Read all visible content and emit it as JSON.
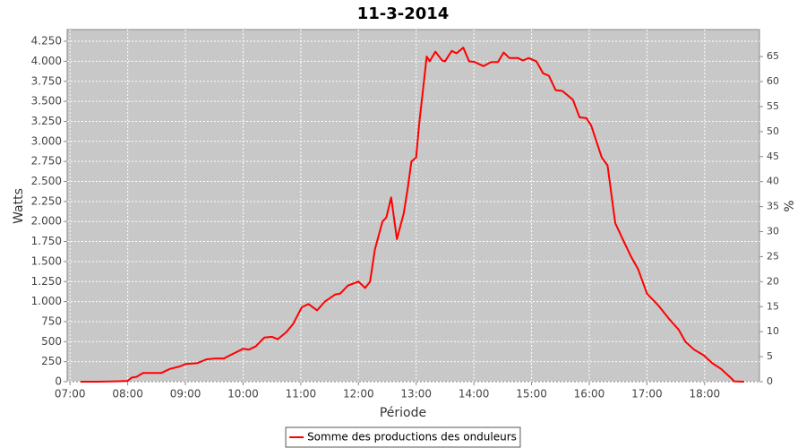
{
  "chart_data": {
    "type": "line",
    "title": "11-3-2014",
    "xlabel": "Période",
    "ylabel": "Watts",
    "y2label": "%",
    "x": [
      431,
      450,
      468,
      480,
      484,
      489,
      496,
      506,
      515,
      524,
      534,
      540,
      552,
      562,
      571,
      580,
      588,
      600,
      606,
      613,
      622,
      630,
      636,
      645,
      652,
      661,
      668,
      677,
      685,
      696,
      701,
      709,
      720,
      727,
      732,
      737,
      745,
      749,
      754,
      760,
      767,
      771,
      775,
      780,
      783,
      791,
      794,
      800,
      807,
      810,
      817,
      822,
      829,
      835,
      841,
      850,
      858,
      865,
      871,
      877,
      886,
      891,
      897,
      905,
      912,
      918,
      925,
      932,
      943,
      950,
      957,
      962,
      973,
      979,
      987,
      996,
      1004,
      1011,
      1020,
      1032,
      1044,
      1053,
      1060,
      1069,
      1079,
      1088,
      1097,
      1107,
      1111,
      1121
    ],
    "series": [
      {
        "name": "Somme des productions des onduleurs",
        "color": "#ff0000",
        "values": [
          0,
          0,
          5,
          10,
          50,
          60,
          110,
          110,
          110,
          160,
          190,
          220,
          230,
          280,
          290,
          290,
          340,
          410,
          400,
          440,
          550,
          560,
          530,
          620,
          720,
          930,
          970,
          890,
          1000,
          1090,
          1100,
          1200,
          1250,
          1170,
          1250,
          1650,
          2000,
          2050,
          2300,
          1780,
          2100,
          2400,
          2750,
          2800,
          3200,
          4060,
          4000,
          4120,
          4010,
          4000,
          4130,
          4100,
          4170,
          4000,
          3990,
          3940,
          3990,
          3990,
          4110,
          4040,
          4040,
          4010,
          4040,
          4000,
          3850,
          3820,
          3640,
          3630,
          3520,
          3300,
          3290,
          3200,
          2800,
          2700,
          1980,
          1750,
          1550,
          1400,
          1100,
          950,
          770,
          650,
          500,
          400,
          330,
          230,
          160,
          50,
          5,
          0
        ]
      }
    ],
    "xlim": [
      417,
      1137
    ],
    "xticks": [
      {
        "value": 420,
        "label": "07:00"
      },
      {
        "value": 480,
        "label": "08:00"
      },
      {
        "value": 540,
        "label": "09:00"
      },
      {
        "value": 600,
        "label": "10:00"
      },
      {
        "value": 660,
        "label": "11:00"
      },
      {
        "value": 720,
        "label": "12:00"
      },
      {
        "value": 780,
        "label": "13:00"
      },
      {
        "value": 840,
        "label": "14:00"
      },
      {
        "value": 900,
        "label": "15:00"
      },
      {
        "value": 960,
        "label": "16:00"
      },
      {
        "value": 1020,
        "label": "17:00"
      },
      {
        "value": 1080,
        "label": "18:00"
      }
    ],
    "ylim": [
      0,
      4396
    ],
    "yticks": [
      0,
      250,
      500,
      750,
      {
        "value": 1000,
        "label": "1.000"
      },
      {
        "value": 1250,
        "label": "1.250"
      },
      {
        "value": 1500,
        "label": "1.500"
      },
      {
        "value": 1750,
        "label": "1.750"
      },
      {
        "value": 2000,
        "label": "2.000"
      },
      {
        "value": 2250,
        "label": "2.250"
      },
      {
        "value": 2500,
        "label": "2.500"
      },
      {
        "value": 2750,
        "label": "2.750"
      },
      {
        "value": 3000,
        "label": "3.000"
      },
      {
        "value": 3250,
        "label": "3.250"
      },
      {
        "value": 3500,
        "label": "3.500"
      },
      {
        "value": 3750,
        "label": "3.750"
      },
      {
        "value": 4000,
        "label": "4.000"
      },
      {
        "value": 4250,
        "label": "4.250"
      }
    ],
    "y2lim": [
      0,
      70.4
    ],
    "y2ticks": [
      0,
      5,
      10,
      15,
      20,
      25,
      30,
      35,
      40,
      45,
      50,
      55,
      60,
      65
    ],
    "grid": true,
    "legend": "bottom"
  }
}
